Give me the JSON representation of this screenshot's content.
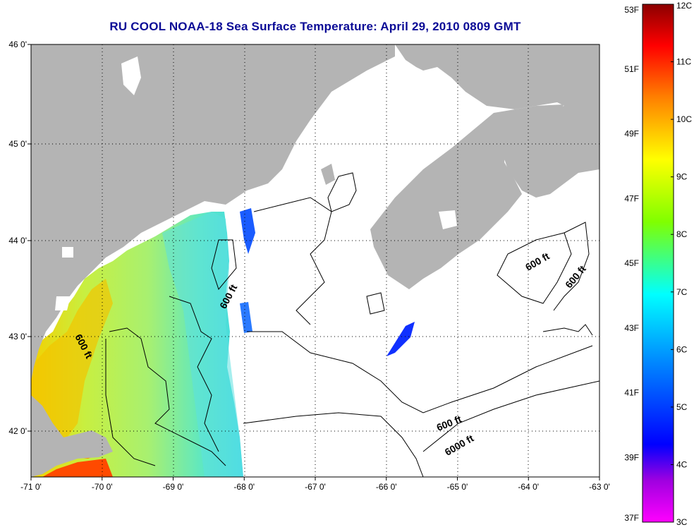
{
  "title": "RU COOL  NOAA-18  Sea Surface Temperature:  April 29, 2010 0809 GMT",
  "map": {
    "lon_ticks": [
      "-71 0'",
      "-70 0'",
      "-69 0'",
      "-68 0'",
      "-67 0'",
      "-66 0'",
      "-65 0'",
      "-64 0'",
      "-63 0'"
    ],
    "lat_ticks": [
      "46 0'",
      "45 0'",
      "44 0'",
      "43 0'",
      "42 0'"
    ],
    "lon_range": [
      -71.0,
      -63.0
    ],
    "lat_range": [
      41.5,
      46.0
    ],
    "grid": true,
    "land_color": "#b4b4b4",
    "cloud_color": "#ffffff",
    "isobath_labels": [
      {
        "text": "600 ft",
        "lon": -68.18,
        "lat": 43.4,
        "rotate": -62
      },
      {
        "text": "600 ft",
        "lon": -70.3,
        "lat": 42.88,
        "rotate": 62
      },
      {
        "text": "600 ft",
        "lon": -63.85,
        "lat": 43.75,
        "rotate": -30
      },
      {
        "text": "600 ft",
        "lon": -63.3,
        "lat": 43.6,
        "rotate": -50
      },
      {
        "text": "600 ft",
        "lon": -65.1,
        "lat": 42.05,
        "rotate": -22
      },
      {
        "text": "6000 ft",
        "lon": -64.95,
        "lat": 41.82,
        "rotate": -30
      }
    ]
  },
  "colorbar": {
    "f_labels": [
      "53F",
      "51F",
      "49F",
      "47F",
      "45F",
      "43F",
      "41F",
      "39F",
      "37F"
    ],
    "c_labels": [
      "12C",
      "11C",
      "10C",
      "9C",
      "8C",
      "7C",
      "6C",
      "5C",
      "4C",
      "3C"
    ],
    "colors": [
      "#8b0000",
      "#ff0000",
      "#ff8000",
      "#ffff00",
      "#80ff00",
      "#00ffff",
      "#0080ff",
      "#0000ff",
      "#8000c0",
      "#ff00ff"
    ]
  }
}
